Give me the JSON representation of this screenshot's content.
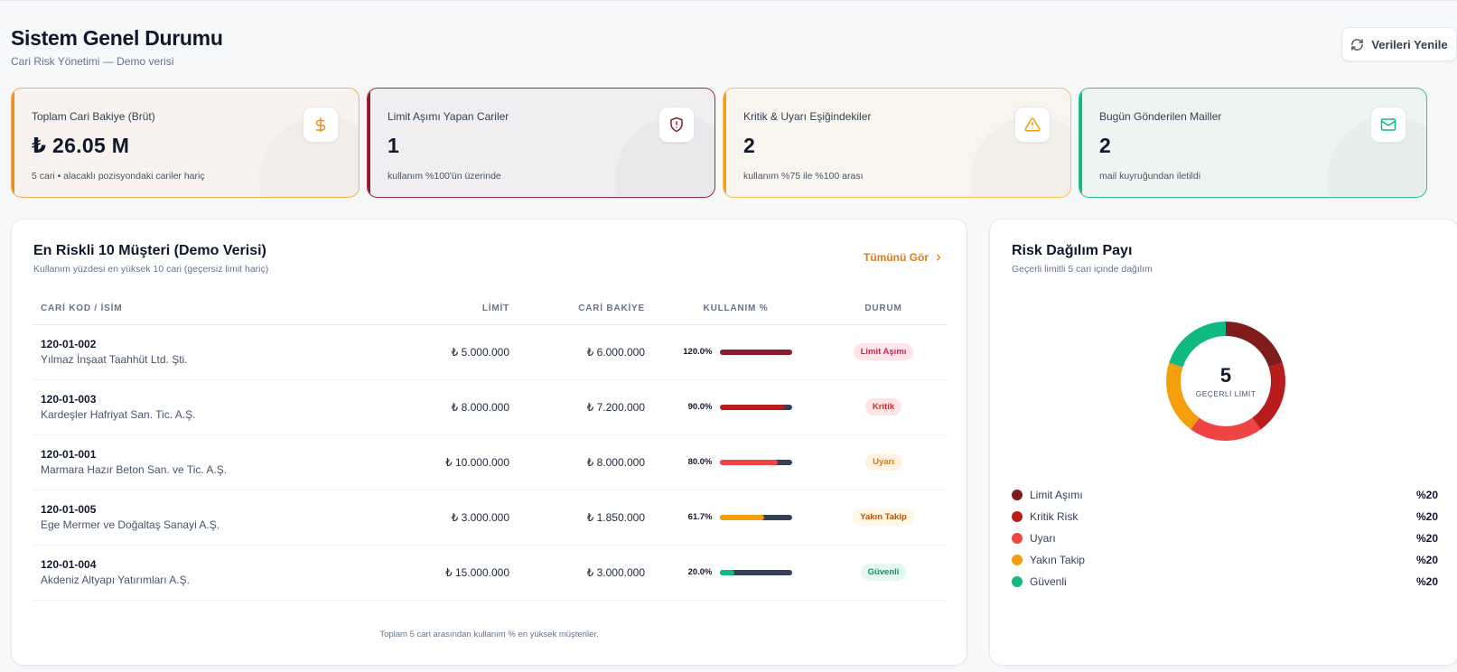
{
  "header": {
    "title": "Sistem Genel Durumu",
    "subtitle": "Cari Risk Yönetimi — Demo verisi",
    "refresh_label": "Verileri Yenile"
  },
  "kpis": [
    {
      "label": "Toplam Cari Bakiye (Brüt)",
      "value": "₺ 26.05 M",
      "note": "5 cari • alacaklı pozisyondaki cariler hariç",
      "icon": "dollar-icon",
      "color": "#f28c18"
    },
    {
      "label": "Limit Aşımı Yapan Cariler",
      "value": "1",
      "note": "kullanım %100'ün üzerinde",
      "icon": "shield-alert-icon",
      "color": "#8b1c2b"
    },
    {
      "label": "Kritik & Uyarı Eşiğindekiler",
      "value": "2",
      "note": "kullanım %75 ile %100 arası",
      "icon": "warning-icon",
      "color": "#f59e0b"
    },
    {
      "label": "Bugün Gönderilen Mailler",
      "value": "2",
      "note": "mail kuyruğundan iletildi",
      "icon": "mail-icon",
      "color": "#10b981"
    }
  ],
  "table_card": {
    "title": "En Riskli 10 Müşteri (Demo Verisi)",
    "subtitle": "Kullanım yüzdesi en yüksek 10 cari (geçersiz limit hariç)",
    "see_all": "Tümünü Gör",
    "columns": [
      "CARİ KOD / İSİM",
      "LİMİT",
      "CARİ BAKİYE",
      "KULLANIM %",
      "DURUM"
    ],
    "rows": [
      {
        "code": "120-01-002",
        "name": "Yılmaz İnşaat Taahhüt Ltd. Şti.",
        "limit": "₺ 5.000.000",
        "balance": "₺ 6.000.000",
        "usage": "120.0%",
        "usage_fraction": 1.0,
        "bar_color": "#8b1c2b",
        "status": "Limit Aşımı",
        "status_fg": "#e11d48",
        "status_bg": "#ffe4ea"
      },
      {
        "code": "120-01-003",
        "name": "Kardeşler Hafriyat San. Tic. A.Ş.",
        "limit": "₺ 8.000.000",
        "balance": "₺ 7.200.000",
        "usage": "90.0%",
        "usage_fraction": 0.9,
        "bar_color": "#b91c1c",
        "status": "Kritik",
        "status_fg": "#dc2626",
        "status_bg": "#fde4e4"
      },
      {
        "code": "120-01-001",
        "name": "Marmara Hazır Beton San. ve Tic. A.Ş.",
        "limit": "₺ 10.000.000",
        "balance": "₺ 8.000.000",
        "usage": "80.0%",
        "usage_fraction": 0.8,
        "bar_color": "#ef4444",
        "status": "Uyarı",
        "status_fg": "#d97706",
        "status_bg": "#fff3e0"
      },
      {
        "code": "120-01-005",
        "name": "Ege Mermer ve Doğaltaş Sanayi A.Ş.",
        "limit": "₺ 3.000.000",
        "balance": "₺ 1.850.000",
        "usage": "61.7%",
        "usage_fraction": 0.617,
        "bar_color": "#f59e0b",
        "status": "Yakın Takip",
        "status_fg": "#b45309",
        "status_bg": "#fff6e5"
      },
      {
        "code": "120-01-004",
        "name": "Akdeniz Altyapı Yatırımları A.Ş.",
        "limit": "₺ 15.000.000",
        "balance": "₺ 3.000.000",
        "usage": "20.0%",
        "usage_fraction": 0.2,
        "bar_color": "#10b981",
        "status": "Güvenli",
        "status_fg": "#059669",
        "status_bg": "#e3f7ee"
      }
    ],
    "footer": "Toplam 5 cari arasından kullanım % en yüksek müşteriler."
  },
  "risk_card": {
    "title": "Risk Dağılım Payı",
    "subtitle": "Geçerli limitli 5 cari içinde dağılım",
    "center_value": "5",
    "center_label": "GEÇERLİ LİMİT",
    "legend": [
      {
        "name": "Limit Aşımı",
        "pct": "%20",
        "value": 20,
        "color": "#7f1d1d"
      },
      {
        "name": "Kritik Risk",
        "pct": "%20",
        "value": 20,
        "color": "#b91c1c"
      },
      {
        "name": "Uyarı",
        "pct": "%20",
        "value": 20,
        "color": "#ef4444"
      },
      {
        "name": "Yakın Takip",
        "pct": "%20",
        "value": 20,
        "color": "#f59e0b"
      },
      {
        "name": "Güvenli",
        "pct": "%20",
        "value": 20,
        "color": "#10b981"
      }
    ]
  }
}
